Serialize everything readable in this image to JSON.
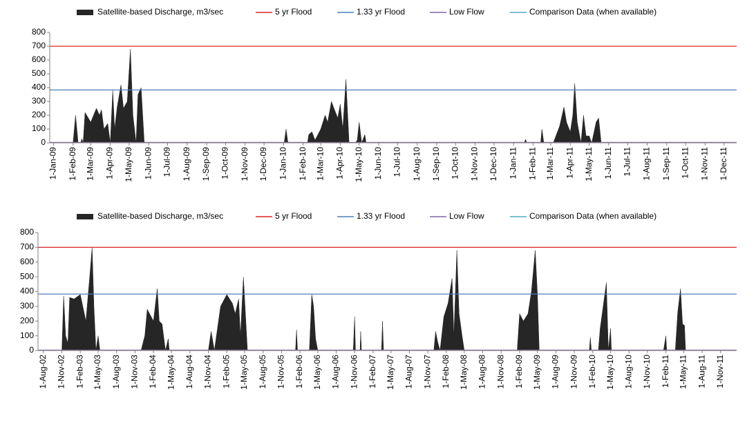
{
  "chart_data": [
    {
      "type": "area",
      "series": [
        {
          "name": "Satellite-based Discharge, m3/sec",
          "color": "#262626",
          "x": [
            "2008-12-26",
            "2009-02-01",
            "2009-02-05",
            "2009-02-09",
            "2009-02-13",
            "2009-02-15",
            "2009-02-17",
            "2009-02-20",
            "2009-03-01",
            "2009-03-10",
            "2009-03-15",
            "2009-03-18",
            "2009-03-22",
            "2009-03-28",
            "2009-04-01",
            "2009-04-05",
            "2009-04-08",
            "2009-04-12",
            "2009-04-18",
            "2009-04-22",
            "2009-04-28",
            "2009-05-03",
            "2009-05-07",
            "2009-05-12",
            "2009-05-15",
            "2009-05-20",
            "2009-05-25",
            "2009-11-28",
            "2009-12-01",
            "2009-12-04",
            "2010-01-02",
            "2010-01-05",
            "2010-01-08",
            "2010-02-08",
            "2010-02-10",
            "2010-02-15",
            "2010-02-20",
            "2010-03-01",
            "2010-03-08",
            "2010-03-12",
            "2010-03-18",
            "2010-03-22",
            "2010-03-28",
            "2010-04-01",
            "2010-04-05",
            "2010-04-10",
            "2010-04-15",
            "2010-04-25",
            "2010-04-28",
            "2010-05-01",
            "2010-05-05",
            "2010-05-10",
            "2010-05-12",
            "2011-01-18",
            "2011-01-20",
            "2011-01-22",
            "2011-02-13",
            "2011-02-15",
            "2011-02-18",
            "2011-03-05",
            "2011-03-10",
            "2011-03-15",
            "2011-03-22",
            "2011-03-26",
            "2011-04-01",
            "2011-04-05",
            "2011-04-08",
            "2011-04-12",
            "2011-04-18",
            "2011-04-22",
            "2011-04-26",
            "2011-05-01",
            "2011-05-05",
            "2011-05-12",
            "2011-05-16",
            "2011-05-20",
            "2011-12-21"
          ],
          "values": [
            0,
            0,
            200,
            0,
            0,
            30,
            0,
            220,
            150,
            250,
            200,
            240,
            100,
            140,
            0,
            380,
            100,
            260,
            420,
            250,
            300,
            680,
            200,
            0,
            350,
            400,
            0,
            0,
            5,
            0,
            0,
            100,
            0,
            0,
            60,
            80,
            20,
            100,
            200,
            150,
            300,
            250,
            180,
            280,
            100,
            460,
            0,
            0,
            20,
            150,
            0,
            60,
            0,
            0,
            25,
            0,
            0,
            100,
            0,
            0,
            60,
            120,
            260,
            150,
            80,
            200,
            430,
            150,
            0,
            200,
            50,
            50,
            0,
            150,
            180,
            0,
            0
          ]
        }
      ],
      "reference_lines": [
        {
          "name": "5 yr Flood",
          "color": "#e02020",
          "value": 700
        },
        {
          "name": "1.33 yr Flood",
          "color": "#4a7ebb",
          "value": 383
        },
        {
          "name": "Low Flow",
          "color": "#8064a2",
          "value": 3
        },
        {
          "name": "Comparison Data (when available)",
          "color": "#4bacc6"
        }
      ],
      "xlim": [
        "2008-12-26",
        "2011-12-21"
      ],
      "xticks": [
        {
          "value": "2009-01-01",
          "label": "1-Jan-09"
        },
        {
          "value": "2009-02-01",
          "label": "1-Feb-09"
        },
        {
          "value": "2009-03-01",
          "label": "1-Mar-09"
        },
        {
          "value": "2009-04-01",
          "label": "1-Apr-09"
        },
        {
          "value": "2009-05-01",
          "label": "1-May-09"
        },
        {
          "value": "2009-06-01",
          "label": "1-Jun-09"
        },
        {
          "value": "2009-07-01",
          "label": "1-Jul-09"
        },
        {
          "value": "2009-08-01",
          "label": "1-Aug-09"
        },
        {
          "value": "2009-09-01",
          "label": "1-Sep-09"
        },
        {
          "value": "2009-10-01",
          "label": "1-Oct-09"
        },
        {
          "value": "2009-11-01",
          "label": "1-Nov-09"
        },
        {
          "value": "2009-12-01",
          "label": "1-Dec-09"
        },
        {
          "value": "2010-01-01",
          "label": "1-Jan-10"
        },
        {
          "value": "2010-02-01",
          "label": "1-Feb-10"
        },
        {
          "value": "2010-03-01",
          "label": "1-Mar-10"
        },
        {
          "value": "2010-04-01",
          "label": "1-Apr-10"
        },
        {
          "value": "2010-05-01",
          "label": "1-May-10"
        },
        {
          "value": "2010-06-01",
          "label": "1-Jun-10"
        },
        {
          "value": "2010-07-01",
          "label": "1-Jul-10"
        },
        {
          "value": "2010-08-01",
          "label": "1-Aug-10"
        },
        {
          "value": "2010-09-01",
          "label": "1-Sep-10"
        },
        {
          "value": "2010-10-01",
          "label": "1-Oct-10"
        },
        {
          "value": "2010-11-01",
          "label": "1-Nov-10"
        },
        {
          "value": "2010-12-01",
          "label": "1-Dec-10"
        },
        {
          "value": "2011-01-01",
          "label": "1-Jan-11"
        },
        {
          "value": "2011-02-01",
          "label": "1-Feb-11"
        },
        {
          "value": "2011-03-01",
          "label": "1-Mar-11"
        },
        {
          "value": "2011-04-01",
          "label": "1-Apr-11"
        },
        {
          "value": "2011-05-01",
          "label": "1-May-11"
        },
        {
          "value": "2011-06-01",
          "label": "1-Jun-11"
        },
        {
          "value": "2011-07-01",
          "label": "1-Jul-11"
        },
        {
          "value": "2011-08-01",
          "label": "1-Aug-11"
        },
        {
          "value": "2011-09-01",
          "label": "1-Sep-11"
        },
        {
          "value": "2011-10-01",
          "label": "1-Oct-11"
        },
        {
          "value": "2011-11-01",
          "label": "1-Nov-11"
        },
        {
          "value": "2011-12-01",
          "label": "1-Dec-11"
        }
      ],
      "ylim": [
        0,
        800
      ],
      "yticks": [
        0,
        100,
        200,
        300,
        400,
        500,
        600,
        700,
        800
      ]
    },
    {
      "type": "area",
      "series": [
        {
          "name": "Satellite-based Discharge, m3/sec",
          "color": "#262626",
          "x": [
            "2002-07-05",
            "2002-11-01",
            "2002-11-10",
            "2002-11-20",
            "2002-12-01",
            "2002-12-10",
            "2003-01-01",
            "2003-02-01",
            "2003-03-01",
            "2003-03-20",
            "2003-04-01",
            "2003-04-10",
            "2003-04-20",
            "2003-05-01",
            "2003-05-10",
            "2003-12-01",
            "2003-12-20",
            "2004-01-01",
            "2004-02-01",
            "2004-02-20",
            "2004-03-01",
            "2004-03-15",
            "2004-04-01",
            "2004-04-15",
            "2004-04-20",
            "2004-11-01",
            "2004-11-15",
            "2004-12-01",
            "2005-01-01",
            "2005-02-01",
            "2005-03-01",
            "2005-03-15",
            "2005-04-01",
            "2005-04-10",
            "2005-04-25",
            "2005-05-05",
            "2005-05-15",
            "2006-01-10",
            "2006-01-15",
            "2006-01-20",
            "2006-03-20",
            "2006-04-01",
            "2006-04-10",
            "2006-04-20",
            "2006-05-01",
            "2006-10-25",
            "2006-11-01",
            "2006-11-05",
            "2006-11-28",
            "2006-12-01",
            "2006-12-05",
            "2007-03-15",
            "2007-03-20",
            "2007-03-25",
            "2007-12-01",
            "2007-12-10",
            "2007-12-20",
            "2008-01-01",
            "2008-01-20",
            "2008-02-10",
            "2008-03-01",
            "2008-03-10",
            "2008-03-25",
            "2008-04-05",
            "2008-04-20",
            "2008-05-01",
            "2009-01-20",
            "2009-02-01",
            "2009-02-20",
            "2009-03-15",
            "2009-04-01",
            "2009-04-20",
            "2009-05-01",
            "2009-05-10",
            "2010-01-15",
            "2010-01-20",
            "2010-01-25",
            "2010-03-01",
            "2010-03-10",
            "2010-03-25",
            "2010-04-10",
            "2010-04-20",
            "2010-05-01",
            "2010-05-05",
            "2011-01-20",
            "2011-02-01",
            "2011-02-05",
            "2011-03-20",
            "2011-04-01",
            "2011-04-15",
            "2011-04-25",
            "2011-05-05",
            "2011-05-10",
            "2012-01-20"
          ],
          "values": [
            0,
            0,
            370,
            100,
            50,
            360,
            350,
            380,
            200,
            500,
            700,
            300,
            0,
            100,
            0,
            0,
            100,
            280,
            200,
            420,
            200,
            180,
            0,
            80,
            0,
            0,
            130,
            0,
            300,
            380,
            320,
            250,
            350,
            100,
            500,
            250,
            0,
            0,
            140,
            0,
            0,
            380,
            300,
            80,
            0,
            0,
            230,
            0,
            0,
            130,
            0,
            0,
            200,
            0,
            0,
            130,
            60,
            0,
            230,
            320,
            490,
            100,
            680,
            250,
            100,
            0,
            0,
            250,
            200,
            250,
            400,
            680,
            380,
            0,
            0,
            90,
            0,
            0,
            150,
            300,
            460,
            0,
            150,
            0,
            0,
            100,
            0,
            0,
            260,
            420,
            180,
            170,
            0,
            0
          ]
        }
      ],
      "reference_lines": [
        {
          "name": "5 yr Flood",
          "color": "#e02020",
          "value": 700
        },
        {
          "name": "1.33 yr Flood",
          "color": "#4a7ebb",
          "value": 383
        },
        {
          "name": "Low Flow",
          "color": "#8064a2",
          "value": 3
        },
        {
          "name": "Comparison Data (when available)",
          "color": "#4bacc6"
        }
      ],
      "xlim": [
        "2002-07-05",
        "2012-01-20"
      ],
      "xticks": [
        {
          "value": "2002-08-01",
          "label": "1-Aug-02"
        },
        {
          "value": "2002-11-01",
          "label": "1-Nov-02"
        },
        {
          "value": "2003-02-01",
          "label": "1-Feb-03"
        },
        {
          "value": "2003-05-01",
          "label": "1-May-03"
        },
        {
          "value": "2003-08-01",
          "label": "1-Aug-03"
        },
        {
          "value": "2003-11-01",
          "label": "1-Nov-03"
        },
        {
          "value": "2004-02-01",
          "label": "1-Feb-04"
        },
        {
          "value": "2004-05-01",
          "label": "1-May-04"
        },
        {
          "value": "2004-08-01",
          "label": "1-Aug-04"
        },
        {
          "value": "2004-11-01",
          "label": "1-Nov-04"
        },
        {
          "value": "2005-02-01",
          "label": "1-Feb-05"
        },
        {
          "value": "2005-05-01",
          "label": "1-May-05"
        },
        {
          "value": "2005-08-01",
          "label": "1-Aug-05"
        },
        {
          "value": "2005-11-01",
          "label": "1-Nov-05"
        },
        {
          "value": "2006-02-01",
          "label": "1-Feb-06"
        },
        {
          "value": "2006-05-01",
          "label": "1-May-06"
        },
        {
          "value": "2006-08-01",
          "label": "1-Aug-06"
        },
        {
          "value": "2006-11-01",
          "label": "1-Nov-06"
        },
        {
          "value": "2007-02-01",
          "label": "1-Feb-07"
        },
        {
          "value": "2007-05-01",
          "label": "1-May-07"
        },
        {
          "value": "2007-08-01",
          "label": "1-Aug-07"
        },
        {
          "value": "2007-11-01",
          "label": "1-Nov-07"
        },
        {
          "value": "2008-02-01",
          "label": "1-Feb-08"
        },
        {
          "value": "2008-05-01",
          "label": "1-May-08"
        },
        {
          "value": "2008-08-01",
          "label": "1-Aug-08"
        },
        {
          "value": "2008-11-01",
          "label": "1-Nov-08"
        },
        {
          "value": "2009-02-01",
          "label": "1-Feb-09"
        },
        {
          "value": "2009-05-01",
          "label": "1-May-09"
        },
        {
          "value": "2009-08-01",
          "label": "1-Aug-09"
        },
        {
          "value": "2009-11-01",
          "label": "1-Nov-09"
        },
        {
          "value": "2010-02-01",
          "label": "1-Feb-10"
        },
        {
          "value": "2010-05-01",
          "label": "1-May-10"
        },
        {
          "value": "2010-08-01",
          "label": "1-Aug-10"
        },
        {
          "value": "2010-11-01",
          "label": "1-Nov-10"
        },
        {
          "value": "2011-02-01",
          "label": "1-Feb-11"
        },
        {
          "value": "2011-05-01",
          "label": "1-May-11"
        },
        {
          "value": "2011-08-01",
          "label": "1-Aug-11"
        },
        {
          "value": "2011-11-01",
          "label": "1-Nov-11"
        }
      ],
      "ylim": [
        0,
        800
      ],
      "yticks": [
        0,
        100,
        200,
        300,
        400,
        500,
        600,
        700,
        800
      ]
    }
  ]
}
